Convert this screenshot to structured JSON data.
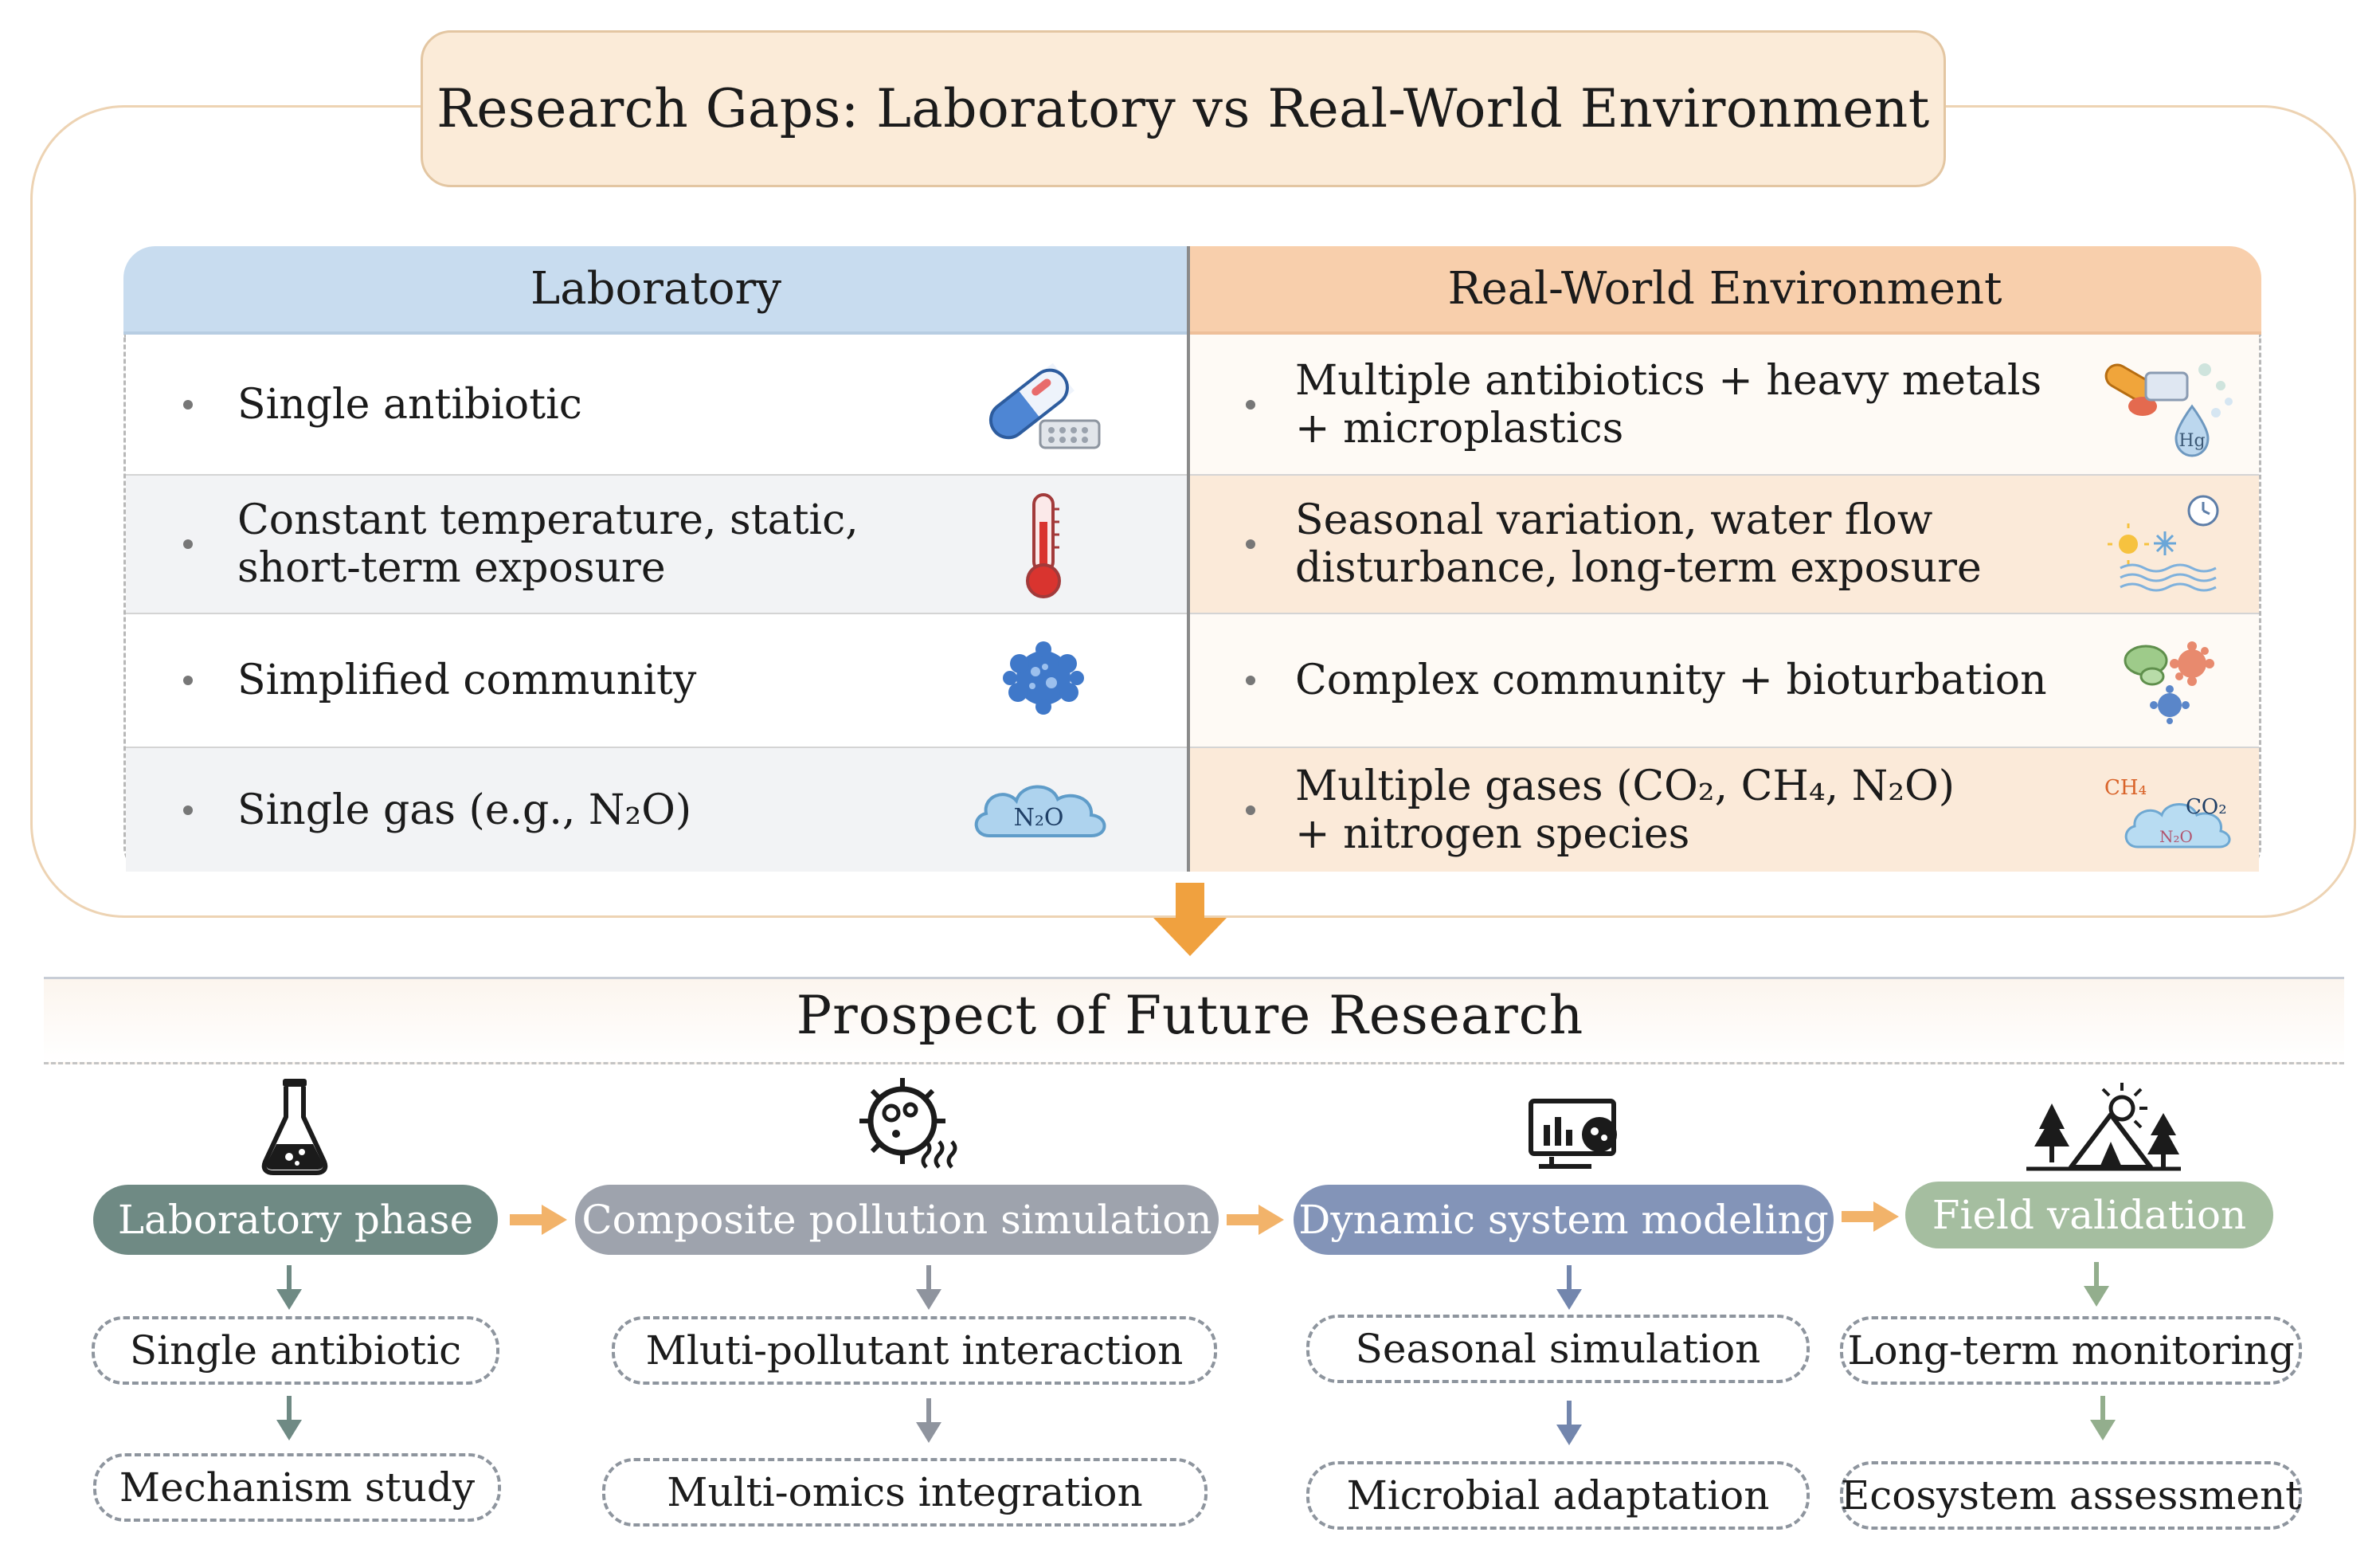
{
  "title": "Research Gaps: Laboratory vs Real-World Environment",
  "table": {
    "lab_header": "Laboratory",
    "real_header": "Real-World Environment",
    "lab_rows": [
      {
        "text": "Single antibiotic",
        "icon": "pill-icon"
      },
      {
        "text": "Constant temperature, static,\nshort-term exposure",
        "icon": "thermometer-icon"
      },
      {
        "text": "Simplified community",
        "icon": "microbe-icon"
      },
      {
        "text": "Single gas (e.g., N₂O)",
        "icon": "cloud-icon"
      }
    ],
    "real_rows": [
      {
        "text": "Multiple antibiotics + heavy metals\n+ microplastics",
        "icon": "pollutants-icon"
      },
      {
        "text": "Seasonal variation, water flow\ndisturbance, long-term exposure",
        "icon": "season-water-icon"
      },
      {
        "text": "Complex community + bioturbation",
        "icon": "microbes-icon"
      },
      {
        "text": "Multiple gases (CO₂, CH₄, N₂O)\n+ nitrogen species",
        "icon": "gases-icon"
      }
    ],
    "icon_labels": {
      "n2o": "N₂O",
      "hg": "Hg",
      "ch4": "CH₄",
      "co2": "CO₂",
      "n2o_small": "N₂O"
    }
  },
  "prospect_title": "Prospect of Future Research",
  "stages": [
    {
      "label": "Laboratory phase",
      "color": "#6f8a84",
      "icon": "flask-icon",
      "subs": [
        "Single antibiotic",
        "Mechanism study"
      ]
    },
    {
      "label": "Composite pollution simulation",
      "color": "#9ea3ad",
      "icon": "pollution-microbe-icon",
      "subs": [
        "Mluti-pollutant interaction",
        "Multi-omics integration"
      ]
    },
    {
      "label": "Dynamic system modeling",
      "color": "#8394b8",
      "icon": "monitor-chart-icon",
      "subs": [
        "Seasonal simulation",
        "Microbial adaptation"
      ]
    },
    {
      "label": "Field validation",
      "color": "#a5bea0",
      "icon": "field-tent-icon",
      "subs": [
        "Long-term monitoring",
        "Ecosystem assessment"
      ]
    }
  ],
  "colors": {
    "lab_header": "#c8dcef",
    "real_header": "#f8cfac",
    "flow_arrow": "#f2b36a",
    "down_arrow": "#f0a13f"
  }
}
